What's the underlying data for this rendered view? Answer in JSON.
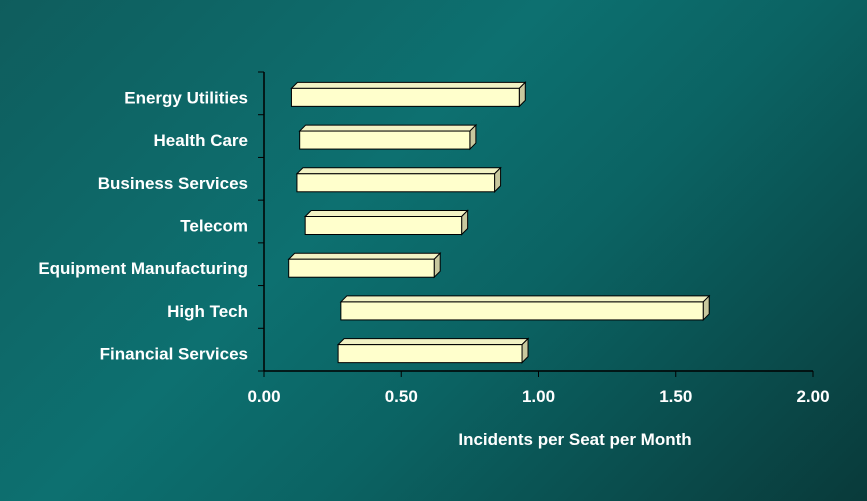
{
  "chart_data": {
    "type": "bar",
    "orientation": "horizontal",
    "style": "floating-range",
    "categories": [
      "Energy Utilities",
      "Health Care",
      "Business Services",
      "Telecom",
      "Equipment Manufacturing",
      "High Tech",
      "Financial Services"
    ],
    "ranges": [
      [
        0.1,
        0.93
      ],
      [
        0.13,
        0.75
      ],
      [
        0.12,
        0.84
      ],
      [
        0.15,
        0.72
      ],
      [
        0.09,
        0.62
      ],
      [
        0.28,
        1.6
      ],
      [
        0.27,
        0.94
      ]
    ],
    "xlabel": "Incidents per Seat per Month",
    "xlim": [
      0,
      2
    ],
    "xticks": [
      "0.00",
      "0.50",
      "1.00",
      "1.50",
      "2.00"
    ],
    "grid": false,
    "legend": "none"
  },
  "colors": {
    "bar_face": "#ffffcc",
    "bar_side": "#c8c89e",
    "bar_top": "#f2f2c4",
    "axis": "#000000",
    "text": "#ffffff"
  }
}
